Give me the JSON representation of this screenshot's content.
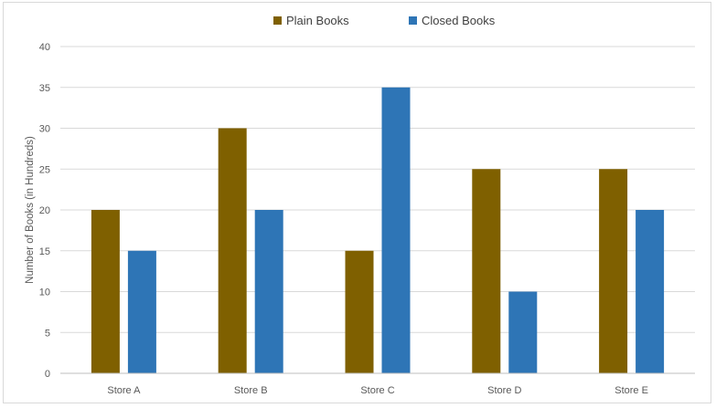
{
  "chart_data": {
    "type": "bar",
    "categories": [
      "Store A",
      "Store B",
      "Store C",
      "Store D",
      "Store E"
    ],
    "series": [
      {
        "name": "Plain Books",
        "values": [
          20,
          30,
          15,
          25,
          25
        ],
        "color": "#7f6000"
      },
      {
        "name": "Closed Books",
        "values": [
          15,
          20,
          35,
          10,
          20
        ],
        "color": "#2e75b6"
      }
    ],
    "title": "",
    "xlabel": "",
    "ylabel": "Number of Books (in Hundreds)",
    "ylim": [
      0,
      40
    ],
    "yticks": [
      0,
      5,
      10,
      15,
      20,
      25,
      30,
      35,
      40
    ],
    "grid": true,
    "legend_position": "top"
  }
}
